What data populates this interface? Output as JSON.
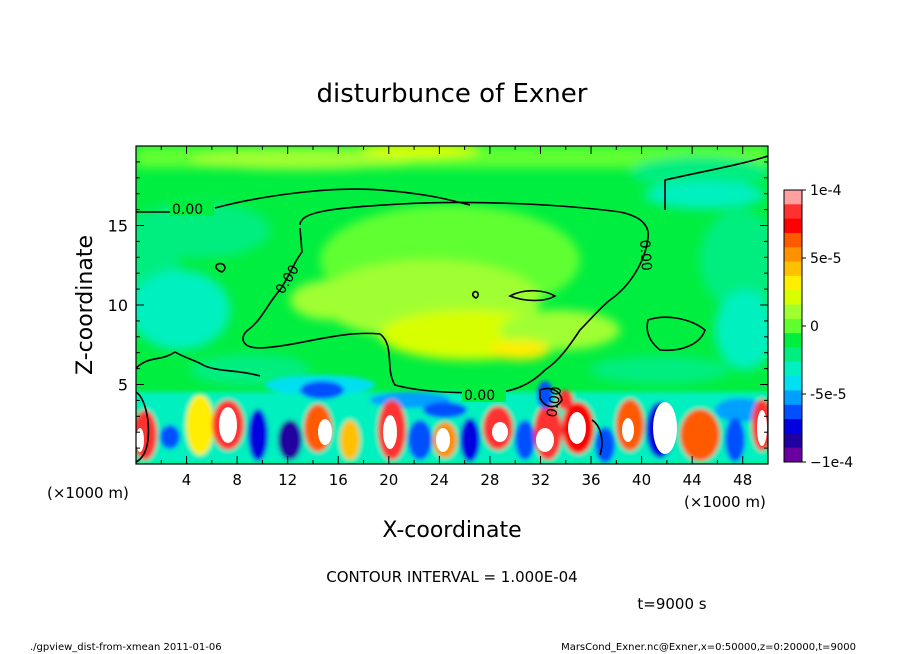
{
  "chart_data": {
    "type": "heatmap",
    "title": "disturbunce of Exner",
    "xlabel": "X-coordinate",
    "ylabel": "Z-coordinate",
    "x_unit_left": "(×1000 m)",
    "x_unit_right": "(×1000 m)",
    "xlim": [
      0,
      50
    ],
    "ylim": [
      0,
      20
    ],
    "x_ticks": [
      "4",
      "8",
      "12",
      "16",
      "20",
      "24",
      "28",
      "32",
      "36",
      "40",
      "44",
      "48"
    ],
    "y_ticks": [
      "5",
      "10",
      "15"
    ],
    "colorbar": {
      "range": [
        -0.0001,
        0.0001
      ],
      "labels": [
        "1e-4",
        "5e-5",
        "0",
        "-5e-5",
        "−1e-4"
      ],
      "colors": [
        "#ffa0a0",
        "#ff3030",
        "#ff0000",
        "#ff5a00",
        "#ff9000",
        "#ffc000",
        "#ffee00",
        "#d8ff00",
        "#a0ff30",
        "#60ff30",
        "#00ee40",
        "#00ee80",
        "#00f0c0",
        "#00e0f0",
        "#00a0ff",
        "#0050ff",
        "#0000e0",
        "#2000a0",
        "#6a00a0"
      ]
    },
    "contour_labels": [
      "0.00",
      "0.00",
      "0.00",
      "0.00",
      "0.00"
    ],
    "contour_interval": "CONTOUR INTERVAL = 1.000E-04",
    "time_label": "t=9000 s"
  },
  "footer": {
    "left": "./gpview_dist-from-xmean   2011-01-06",
    "right": "MarsCond_Exner.nc@Exner,x=0:50000,z=0:20000,t=9000"
  }
}
